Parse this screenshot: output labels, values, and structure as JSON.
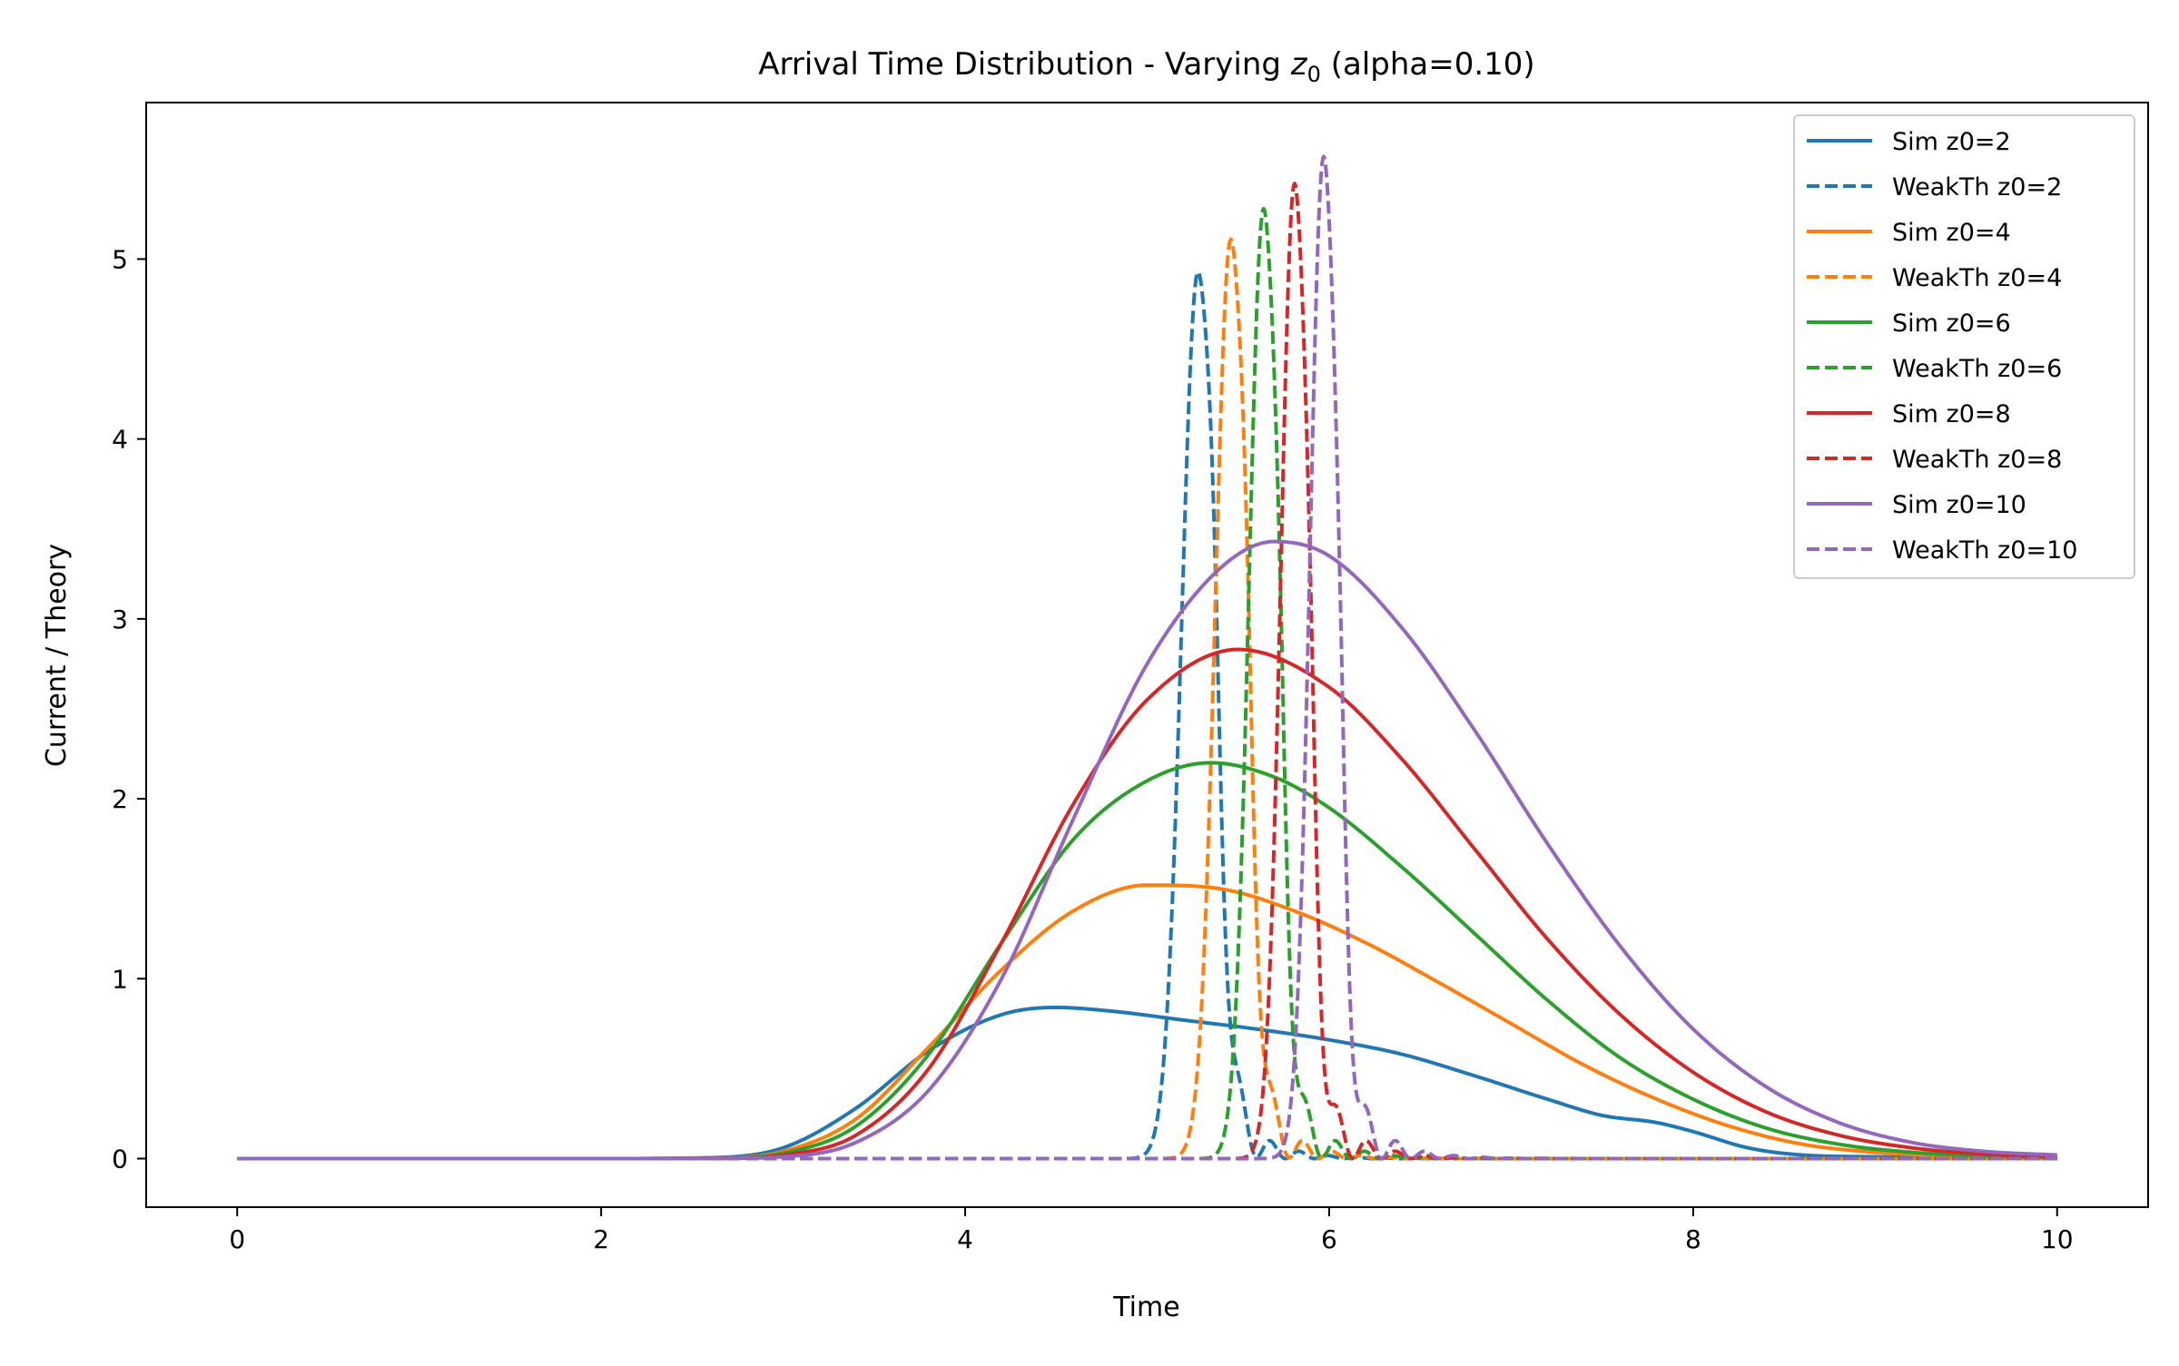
{
  "chart_data": {
    "type": "line",
    "title_prefix": "Arrival Time Distribution - Varying ",
    "title_symbol": "z",
    "title_subscript": "0",
    "title_suffix": " (alpha=0.10)",
    "xlabel": "Time",
    "ylabel": "Current / Theory",
    "xlim": [
      -0.5,
      10.5
    ],
    "ylim": [
      -0.27,
      5.87
    ],
    "xticks": [
      0,
      2,
      4,
      6,
      8,
      10
    ],
    "xtick_labels": [
      "0",
      "2",
      "4",
      "6",
      "8",
      "10"
    ],
    "yticks": [
      0,
      1,
      2,
      3,
      4,
      5
    ],
    "ytick_labels": [
      "0",
      "1",
      "2",
      "3",
      "4",
      "5"
    ],
    "grid": false,
    "legend_position": "top-right",
    "series": [
      {
        "name": "Sim z0=2",
        "color": "#1f77b4",
        "style": "solid",
        "z0": 2,
        "x": [
          0,
          2,
          2.6,
          3.0,
          3.4,
          3.8,
          4.2,
          4.5,
          4.8,
          5.2,
          5.6,
          6.0,
          6.4,
          6.8,
          7.2,
          7.5,
          7.8,
          8.0,
          8.3,
          8.6,
          9.0,
          9.5,
          10
        ],
        "y": [
          0,
          0,
          0.005,
          0.06,
          0.28,
          0.6,
          0.8,
          0.84,
          0.82,
          0.77,
          0.72,
          0.66,
          0.58,
          0.46,
          0.33,
          0.24,
          0.2,
          0.15,
          0.06,
          0.02,
          0.01,
          0.005,
          0.003
        ]
      },
      {
        "name": "WeakTh z0=2",
        "color": "#1f77b4",
        "style": "dashed",
        "z0": 2,
        "peak_t": 5.28,
        "peak_y": 4.93,
        "width": 0.09
      },
      {
        "name": "Sim z0=4",
        "color": "#ff7f0e",
        "style": "solid",
        "z0": 4,
        "x": [
          0,
          2,
          2.6,
          3.0,
          3.4,
          3.8,
          4.2,
          4.6,
          5.0,
          5.4,
          5.8,
          6.2,
          6.6,
          7.0,
          7.4,
          7.8,
          8.2,
          8.6,
          9.0,
          9.5,
          10
        ],
        "y": [
          0,
          0,
          0.003,
          0.04,
          0.22,
          0.62,
          1.05,
          1.38,
          1.52,
          1.5,
          1.38,
          1.2,
          0.98,
          0.75,
          0.52,
          0.33,
          0.18,
          0.08,
          0.035,
          0.012,
          0.005
        ]
      },
      {
        "name": "WeakTh z0=4",
        "color": "#ff7f0e",
        "style": "dashed",
        "z0": 4,
        "peak_t": 5.46,
        "peak_y": 5.11,
        "width": 0.085
      },
      {
        "name": "Sim z0=6",
        "color": "#2ca02c",
        "style": "solid",
        "z0": 6,
        "x": [
          0,
          2,
          2.6,
          3.0,
          3.4,
          3.8,
          4.2,
          4.6,
          5.0,
          5.35,
          5.7,
          6.0,
          6.4,
          6.8,
          7.2,
          7.6,
          8.0,
          8.4,
          8.8,
          9.2,
          9.6,
          10
        ],
        "y": [
          0,
          0,
          0.002,
          0.03,
          0.18,
          0.58,
          1.2,
          1.78,
          2.1,
          2.2,
          2.12,
          1.95,
          1.62,
          1.25,
          0.88,
          0.56,
          0.33,
          0.17,
          0.08,
          0.035,
          0.015,
          0.008
        ]
      },
      {
        "name": "WeakTh z0=6",
        "color": "#2ca02c",
        "style": "dashed",
        "z0": 6,
        "peak_t": 5.64,
        "peak_y": 5.28,
        "width": 0.08
      },
      {
        "name": "Sim z0=8",
        "color": "#d62728",
        "style": "solid",
        "z0": 8,
        "x": [
          0,
          2,
          2.6,
          3.0,
          3.4,
          3.8,
          4.2,
          4.6,
          5.0,
          5.5,
          6.0,
          6.4,
          6.8,
          7.2,
          7.6,
          8.0,
          8.4,
          8.8,
          9.2,
          9.6,
          10
        ],
        "y": [
          0,
          0,
          0.001,
          0.02,
          0.13,
          0.5,
          1.2,
          1.98,
          2.55,
          2.83,
          2.62,
          2.22,
          1.72,
          1.22,
          0.8,
          0.48,
          0.26,
          0.13,
          0.06,
          0.025,
          0.01
        ]
      },
      {
        "name": "WeakTh z0=8",
        "color": "#d62728",
        "style": "dashed",
        "z0": 8,
        "peak_t": 5.81,
        "peak_y": 5.42,
        "width": 0.075
      },
      {
        "name": "Sim z0=10",
        "color": "#9467bd",
        "style": "solid",
        "z0": 10,
        "x": [
          0,
          2,
          2.6,
          3.0,
          3.4,
          3.8,
          4.2,
          4.6,
          5.0,
          5.4,
          5.7,
          6.0,
          6.4,
          6.8,
          7.2,
          7.6,
          8.0,
          8.4,
          8.8,
          9.2,
          9.6,
          10
        ],
        "y": [
          0,
          0,
          0.001,
          0.01,
          0.09,
          0.38,
          1.0,
          1.9,
          2.75,
          3.28,
          3.43,
          3.35,
          2.95,
          2.38,
          1.75,
          1.18,
          0.72,
          0.4,
          0.2,
          0.09,
          0.04,
          0.02
        ]
      },
      {
        "name": "WeakTh z0=10",
        "color": "#9467bd",
        "style": "dashed",
        "z0": 10,
        "peak_t": 5.97,
        "peak_y": 5.57,
        "width": 0.075
      }
    ]
  }
}
